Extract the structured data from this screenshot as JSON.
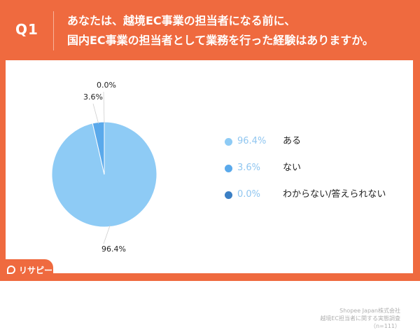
{
  "header": {
    "question_label": "Q1",
    "question_line1": "あなたは、越境EC事業の担当者になる前に、",
    "question_line2": "国内EC事業の担当者として業務を行った経験はありますか。"
  },
  "chart_data": {
    "type": "pie",
    "title": "",
    "categories": [
      "ある",
      "ない",
      "わからない/答えられない"
    ],
    "values": [
      96.4,
      3.6,
      0.0
    ],
    "value_labels": [
      "96.4%",
      "3.6%",
      "0.0%"
    ],
    "colors": [
      "#8ecbf5",
      "#5aa9eb",
      "#3b7fc4"
    ],
    "legend_position": "right"
  },
  "source": {
    "line1": "Shopee Japan株式会社",
    "line2": "越境EC担当者に関する実態調査",
    "line3": "（n=111）"
  },
  "logo": {
    "text": "リサピー",
    "icon": "speech-bubble-icon"
  },
  "colors": {
    "accent": "#ef6a3f",
    "white": "#ffffff"
  }
}
